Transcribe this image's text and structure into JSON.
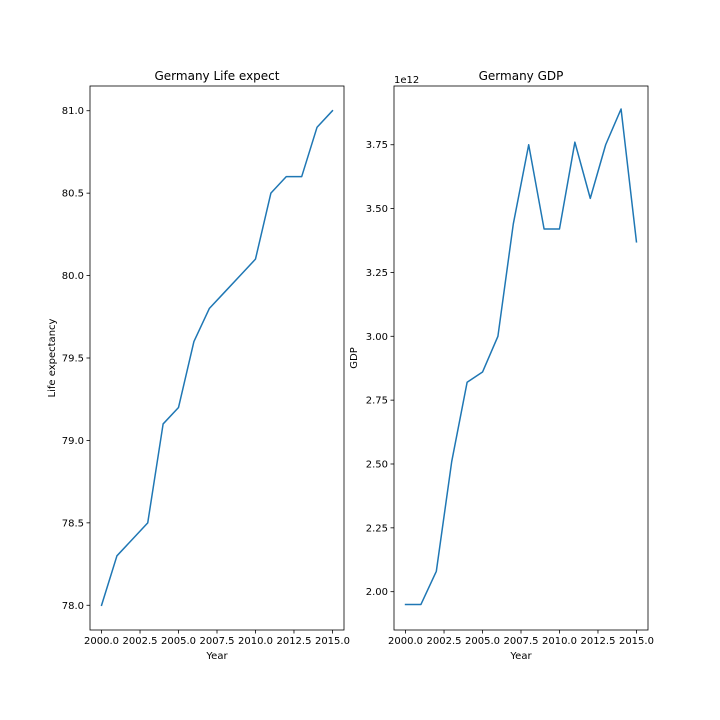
{
  "chart_data": [
    {
      "type": "line",
      "title": "Germany Life expect",
      "xlabel": "Year",
      "ylabel": "Life expectancy",
      "xlim": [
        1999.25,
        2015.75
      ],
      "ylim": [
        77.85,
        81.15
      ],
      "xticks": [
        2000.0,
        2002.5,
        2005.0,
        2007.5,
        2010.0,
        2012.5,
        2015.0
      ],
      "xtick_labels": [
        "2000.0",
        "2002.5",
        "2005.0",
        "2007.5",
        "2010.0",
        "2012.5",
        "2015.0"
      ],
      "yticks": [
        78.0,
        78.5,
        79.0,
        79.5,
        80.0,
        80.5,
        81.0
      ],
      "ytick_labels": [
        "78.0",
        "78.5",
        "79.0",
        "79.5",
        "80.0",
        "80.5",
        "81.0"
      ],
      "grid": false,
      "color": "#1f77b4",
      "x": [
        2000,
        2001,
        2002,
        2003,
        2004,
        2005,
        2006,
        2007,
        2008,
        2009,
        2010,
        2011,
        2012,
        2013,
        2014,
        2015
      ],
      "y": [
        78.0,
        78.3,
        78.4,
        78.5,
        79.1,
        79.2,
        79.6,
        79.8,
        79.9,
        80.0,
        80.1,
        80.5,
        80.6,
        80.6,
        80.9,
        81.0
      ]
    },
    {
      "type": "line",
      "title": "Germany GDP",
      "xlabel": "Year",
      "ylabel": "GDP",
      "offset_label": "1e12",
      "xlim": [
        1999.25,
        2015.75
      ],
      "ylim": [
        1.85,
        3.98
      ],
      "xticks": [
        2000.0,
        2002.5,
        2005.0,
        2007.5,
        2010.0,
        2012.5,
        2015.0
      ],
      "xtick_labels": [
        "2000.0",
        "2002.5",
        "2005.0",
        "2007.5",
        "2010.0",
        "2012.5",
        "2015.0"
      ],
      "yticks": [
        2.0,
        2.25,
        2.5,
        2.75,
        3.0,
        3.25,
        3.5,
        3.75
      ],
      "ytick_labels": [
        "2.00",
        "2.25",
        "2.50",
        "2.75",
        "3.00",
        "3.25",
        "3.50",
        "3.75"
      ],
      "grid": false,
      "color": "#1f77b4",
      "x": [
        2000,
        2001,
        2002,
        2003,
        2004,
        2005,
        2006,
        2007,
        2008,
        2009,
        2010,
        2011,
        2012,
        2013,
        2014,
        2015
      ],
      "y": [
        1.95,
        1.95,
        2.08,
        2.51,
        2.82,
        2.86,
        3.0,
        3.44,
        3.75,
        3.42,
        3.42,
        3.76,
        3.54,
        3.75,
        3.89,
        3.37
      ]
    }
  ]
}
